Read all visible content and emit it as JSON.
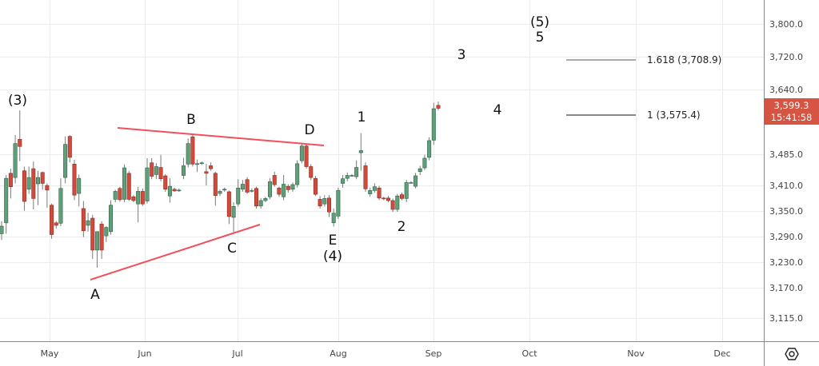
{
  "chart_data": {
    "type": "candlestick",
    "x_tick_labels": [
      "May",
      "Jun",
      "Jul",
      "Aug",
      "Sep",
      "Oct",
      "Nov",
      "Dec"
    ],
    "y_tick_labels": [
      "3,800.0",
      "3,720.0",
      "3,640.0",
      "3,485.0",
      "3,410.0",
      "3,350.0",
      "3,290.0",
      "3,230.0",
      "3,170.0",
      "3,115.0"
    ],
    "y_ticks": [
      3800,
      3720,
      3640,
      3485,
      3410,
      3350,
      3290,
      3230,
      3170,
      3115
    ],
    "ylim": [
      3085,
      3835
    ],
    "grid": true,
    "colors": {
      "up": "#5fa07a",
      "down": "#d14b3c",
      "trendline": "#f0505a",
      "last_price": "#d65442"
    },
    "last_price": {
      "value": "3,599.3",
      "countdown": "15:41:58"
    },
    "ohlc": [
      [
        3300,
        3330,
        3285,
        3318
      ],
      [
        3326,
        3440,
        3300,
        3432
      ],
      [
        3444,
        3455,
        3384,
        3412
      ],
      [
        3434,
        3535,
        3420,
        3515
      ],
      [
        3525,
        3594,
        3473,
        3508
      ],
      [
        3450,
        3460,
        3355,
        3377
      ],
      [
        3406,
        3460,
        3395,
        3434
      ],
      [
        3455,
        3472,
        3358,
        3384
      ],
      [
        3419,
        3450,
        3368,
        3434
      ],
      [
        3446,
        3448,
        3405,
        3420
      ],
      [
        3415,
        3420,
        3362,
        3404
      ],
      [
        3368,
        3372,
        3288,
        3298
      ],
      [
        3326,
        3330,
        3312,
        3320
      ],
      [
        3325,
        3432,
        3318,
        3408
      ],
      [
        3434,
        3532,
        3420,
        3513
      ],
      [
        3532,
        3535,
        3470,
        3482
      ],
      [
        3466,
        3476,
        3380,
        3392
      ],
      [
        3396,
        3441,
        3365,
        3432
      ],
      [
        3360,
        3378,
        3292,
        3307
      ],
      [
        3320,
        3350,
        3305,
        3331
      ],
      [
        3337,
        3345,
        3240,
        3261
      ],
      [
        3261,
        3305,
        3219,
        3305
      ],
      [
        3323,
        3330,
        3240,
        3261
      ],
      [
        3295,
        3318,
        3280,
        3315
      ],
      [
        3305,
        3380,
        3298,
        3368
      ],
      [
        3382,
        3405,
        3375,
        3401
      ],
      [
        3408,
        3412,
        3376,
        3381
      ],
      [
        3382,
        3465,
        3375,
        3457
      ],
      [
        3444,
        3450,
        3378,
        3382
      ],
      [
        3388,
        3392,
        3375,
        3379
      ],
      [
        3371,
        3412,
        3327,
        3401
      ],
      [
        3401,
        3408,
        3366,
        3371
      ],
      [
        3378,
        3480,
        3372,
        3457
      ],
      [
        3469,
        3480,
        3430,
        3437
      ],
      [
        3441,
        3468,
        3430,
        3460
      ],
      [
        3458,
        3488,
        3425,
        3431
      ],
      [
        3438,
        3442,
        3400,
        3406
      ],
      [
        3390,
        3432,
        3374,
        3413
      ],
      [
        3406,
        3410,
        3400,
        3402
      ],
      [
        3404,
        3408,
        3400,
        3404
      ],
      [
        3439,
        3481,
        3430,
        3462
      ],
      [
        3466,
        3527,
        3458,
        3515
      ],
      [
        3531,
        3539,
        3460,
        3466
      ],
      [
        3467,
        3477,
        3447,
        3467
      ],
      [
        3469,
        3472,
        3464,
        3469
      ],
      [
        3448,
        3466,
        3415,
        3444
      ],
      [
        3462,
        3470,
        3450,
        3455
      ],
      [
        3444,
        3448,
        3367,
        3391
      ],
      [
        3396,
        3405,
        3390,
        3401
      ],
      [
        3406,
        3410,
        3400,
        3406
      ],
      [
        3400,
        3403,
        3323,
        3341
      ],
      [
        3339,
        3375,
        3304,
        3365
      ],
      [
        3371,
        3430,
        3365,
        3409
      ],
      [
        3406,
        3428,
        3400,
        3418
      ],
      [
        3429,
        3435,
        3395,
        3399
      ],
      [
        3403,
        3408,
        3398,
        3403
      ],
      [
        3408,
        3412,
        3360,
        3366
      ],
      [
        3366,
        3385,
        3360,
        3379
      ],
      [
        3379,
        3388,
        3375,
        3384
      ],
      [
        3388,
        3432,
        3382,
        3424
      ],
      [
        3439,
        3448,
        3412,
        3417
      ],
      [
        3409,
        3412,
        3388,
        3394
      ],
      [
        3388,
        3440,
        3380,
        3418
      ],
      [
        3413,
        3418,
        3398,
        3405
      ],
      [
        3406,
        3422,
        3400,
        3417
      ],
      [
        3417,
        3475,
        3410,
        3467
      ],
      [
        3474,
        3514,
        3468,
        3509
      ],
      [
        3509,
        3514,
        3455,
        3460
      ],
      [
        3460,
        3466,
        3428,
        3434
      ],
      [
        3432,
        3438,
        3390,
        3394
      ],
      [
        3382,
        3390,
        3360,
        3366
      ],
      [
        3371,
        3392,
        3365,
        3384
      ],
      [
        3385,
        3392,
        3340,
        3352
      ],
      [
        3326,
        3360,
        3317,
        3349
      ],
      [
        3342,
        3410,
        3335,
        3403
      ],
      [
        3420,
        3440,
        3410,
        3431
      ],
      [
        3432,
        3446,
        3425,
        3439
      ],
      [
        3439,
        3442,
        3436,
        3439
      ],
      [
        3436,
        3475,
        3430,
        3458
      ],
      [
        3493,
        3540,
        3450,
        3498
      ],
      [
        3462,
        3470,
        3400,
        3407
      ],
      [
        3395,
        3410,
        3388,
        3403
      ],
      [
        3403,
        3420,
        3398,
        3412
      ],
      [
        3409,
        3414,
        3380,
        3385
      ],
      [
        3385,
        3388,
        3380,
        3383
      ],
      [
        3385,
        3390,
        3375,
        3379
      ],
      [
        3379,
        3384,
        3352,
        3358
      ],
      [
        3358,
        3395,
        3352,
        3390
      ],
      [
        3393,
        3398,
        3380,
        3384
      ],
      [
        3384,
        3428,
        3375,
        3422
      ],
      [
        3422,
        3425,
        3420,
        3422
      ],
      [
        3413,
        3445,
        3408,
        3438
      ],
      [
        3448,
        3462,
        3440,
        3455
      ],
      [
        3457,
        3488,
        3452,
        3480
      ],
      [
        3482,
        3530,
        3475,
        3522
      ],
      [
        3523,
        3612,
        3512,
        3598
      ],
      [
        3606,
        3615,
        3594,
        3599
      ]
    ]
  },
  "annotations": {
    "wave_3_major": "(3)",
    "A": "A",
    "B": "B",
    "C": "C",
    "D": "D",
    "E": "E",
    "wave_4_major": "(4)",
    "w1": "1",
    "w2": "2",
    "w3": "3",
    "w4": "4",
    "wave_5_major": "(5)",
    "w5": "5"
  },
  "fib_levels": [
    {
      "label": "1.618 (3,708.9)",
      "value": 3708.9
    },
    {
      "label": "1 (3,575.4)",
      "value": 3575.4
    }
  ],
  "icons": {
    "settings": "gear-icon"
  }
}
